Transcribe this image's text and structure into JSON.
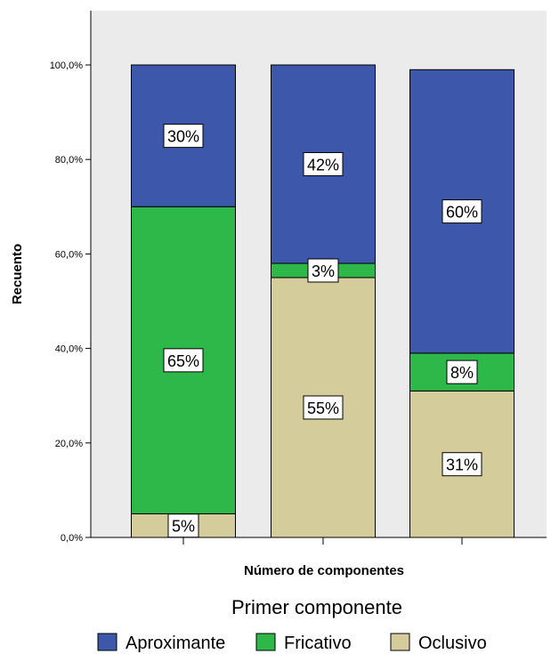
{
  "chart_data": {
    "type": "bar",
    "stacked": true,
    "ylabel": "Recuento",
    "xlabel": "Número de componentes",
    "ylim": [
      0,
      100
    ],
    "yticks": [
      "0,0%",
      "20,0%",
      "40,0%",
      "60,0%",
      "80,0%",
      "100,0%"
    ],
    "grid": false,
    "legend_title": "Primer componente",
    "legend_position": "bottom",
    "colors": {
      "Aproximante": "#3d58ab",
      "Fricativo": "#2fb84a",
      "Oclusivo": "#d4cc9a",
      "plot_bg": "#ebebeb"
    },
    "categories": [
      "",
      "",
      ""
    ],
    "series": [
      {
        "name": "Oclusivo",
        "values": [
          5,
          55,
          31
        ],
        "labels": [
          "5%",
          "55%",
          "31%"
        ]
      },
      {
        "name": "Fricativo",
        "values": [
          65,
          3,
          8
        ],
        "labels": [
          "65%",
          "3%",
          "8%"
        ]
      },
      {
        "name": "Aproximante",
        "values": [
          30,
          42,
          60
        ],
        "labels": [
          "30%",
          "42%",
          "60%"
        ]
      }
    ],
    "legend_order": [
      "Aproximante",
      "Fricativo",
      "Oclusivo"
    ]
  }
}
